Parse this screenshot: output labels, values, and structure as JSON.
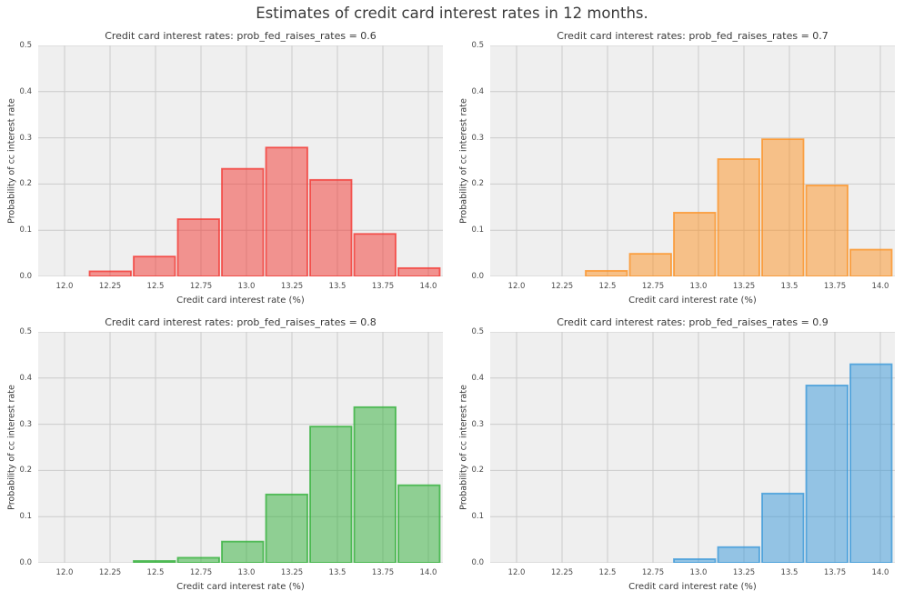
{
  "figure": {
    "title": "Estimates of credit card interest rates in 12 months.",
    "background": "#ffffff",
    "plot_background": "#efefef",
    "grid_color": "#cbcbcb",
    "text_color": "#3a3a3a"
  },
  "chart_data": [
    {
      "type": "bar",
      "title": "Credit card interest rates: prob_fed_raises_rates = 0.6",
      "prob_fed_raises_rates": 0.6,
      "xlabel": "Credit card interest rate (%)",
      "ylabel": "Probability of cc interest rate",
      "color": "#f3352f",
      "xlim": [
        11.855,
        14.08
      ],
      "ylim": [
        0.0,
        0.5
      ],
      "grid": true,
      "bin_width": 0.2425,
      "bars": [
        [
          12.13,
          0.011
        ],
        [
          12.3725,
          0.043
        ],
        [
          12.615,
          0.124
        ],
        [
          12.8575,
          0.233
        ],
        [
          13.1,
          0.279
        ],
        [
          13.3425,
          0.209
        ],
        [
          13.585,
          0.092
        ],
        [
          13.8275,
          0.018
        ]
      ],
      "xticks": [
        {
          "v": 12.0,
          "label": "12.0"
        },
        {
          "v": 12.25,
          "label": "12.25"
        },
        {
          "v": 12.5,
          "label": "12.5"
        },
        {
          "v": 12.75,
          "label": "12.75"
        },
        {
          "v": 13.0,
          "label": "13.0"
        },
        {
          "v": 13.25,
          "label": "13.25"
        },
        {
          "v": 13.5,
          "label": "13.5"
        },
        {
          "v": 13.75,
          "label": "13.75"
        },
        {
          "v": 14.0,
          "label": "14.0"
        }
      ],
      "yticks": [
        {
          "v": 0.0,
          "label": "0.0"
        },
        {
          "v": 0.1,
          "label": "0.1"
        },
        {
          "v": 0.2,
          "label": "0.2"
        },
        {
          "v": 0.3,
          "label": "0.3"
        },
        {
          "v": 0.4,
          "label": "0.4"
        },
        {
          "v": 0.5,
          "label": "0.5"
        }
      ]
    },
    {
      "type": "bar",
      "title": "Credit card interest rates: prob_fed_raises_rates = 0.7",
      "prob_fed_raises_rates": 0.7,
      "xlabel": "Credit card interest rate (%)",
      "ylabel": "Probability of cc interest rate",
      "color": "#fd9121",
      "xlim": [
        11.855,
        14.08
      ],
      "ylim": [
        0.0,
        0.5
      ],
      "grid": true,
      "bin_width": 0.2425,
      "bars": [
        [
          12.3725,
          0.012
        ],
        [
          12.615,
          0.049
        ],
        [
          12.8575,
          0.138
        ],
        [
          13.1,
          0.254
        ],
        [
          13.3425,
          0.297
        ],
        [
          13.585,
          0.197
        ],
        [
          13.8275,
          0.058
        ]
      ],
      "xticks": [
        {
          "v": 12.0,
          "label": "12.0"
        },
        {
          "v": 12.25,
          "label": "12.25"
        },
        {
          "v": 12.5,
          "label": "12.5"
        },
        {
          "v": 12.75,
          "label": "12.75"
        },
        {
          "v": 13.0,
          "label": "13.0"
        },
        {
          "v": 13.25,
          "label": "13.25"
        },
        {
          "v": 13.5,
          "label": "13.5"
        },
        {
          "v": 13.75,
          "label": "13.75"
        },
        {
          "v": 14.0,
          "label": "14.0"
        }
      ],
      "yticks": [
        {
          "v": 0.0,
          "label": "0.0"
        },
        {
          "v": 0.1,
          "label": "0.1"
        },
        {
          "v": 0.2,
          "label": "0.2"
        },
        {
          "v": 0.3,
          "label": "0.3"
        },
        {
          "v": 0.4,
          "label": "0.4"
        },
        {
          "v": 0.5,
          "label": "0.5"
        }
      ]
    },
    {
      "type": "bar",
      "title": "Credit card interest rates: prob_fed_raises_rates = 0.8",
      "prob_fed_raises_rates": 0.8,
      "xlabel": "Credit card interest rate (%)",
      "ylabel": "Probability of cc interest rate",
      "color": "#2faf37",
      "xlim": [
        11.855,
        14.08
      ],
      "ylim": [
        0.0,
        0.5
      ],
      "grid": true,
      "bin_width": 0.2425,
      "bars": [
        [
          12.3725,
          0.004
        ],
        [
          12.615,
          0.011
        ],
        [
          12.8575,
          0.046
        ],
        [
          13.1,
          0.148
        ],
        [
          13.3425,
          0.295
        ],
        [
          13.585,
          0.337
        ],
        [
          13.8275,
          0.168
        ]
      ],
      "xticks": [
        {
          "v": 12.0,
          "label": "12.0"
        },
        {
          "v": 12.25,
          "label": "12.25"
        },
        {
          "v": 12.5,
          "label": "12.5"
        },
        {
          "v": 12.75,
          "label": "12.75"
        },
        {
          "v": 13.0,
          "label": "13.0"
        },
        {
          "v": 13.25,
          "label": "13.25"
        },
        {
          "v": 13.5,
          "label": "13.5"
        },
        {
          "v": 13.75,
          "label": "13.75"
        },
        {
          "v": 14.0,
          "label": "14.0"
        }
      ],
      "yticks": [
        {
          "v": 0.0,
          "label": "0.0"
        },
        {
          "v": 0.1,
          "label": "0.1"
        },
        {
          "v": 0.2,
          "label": "0.2"
        },
        {
          "v": 0.3,
          "label": "0.3"
        },
        {
          "v": 0.4,
          "label": "0.4"
        },
        {
          "v": 0.5,
          "label": "0.5"
        }
      ]
    },
    {
      "type": "bar",
      "title": "Credit card interest rates: prob_fed_raises_rates = 0.9",
      "prob_fed_raises_rates": 0.9,
      "xlabel": "Credit card interest rate (%)",
      "ylabel": "Probability of cc interest rate",
      "color": "#3797d9",
      "xlim": [
        11.855,
        14.08
      ],
      "ylim": [
        0.0,
        0.5
      ],
      "grid": true,
      "bin_width": 0.2425,
      "bars": [
        [
          12.8575,
          0.008
        ],
        [
          13.1,
          0.034
        ],
        [
          13.3425,
          0.15
        ],
        [
          13.585,
          0.384
        ],
        [
          13.8275,
          0.43
        ]
      ],
      "xticks": [
        {
          "v": 12.0,
          "label": "12.0"
        },
        {
          "v": 12.25,
          "label": "12.25"
        },
        {
          "v": 12.5,
          "label": "12.5"
        },
        {
          "v": 12.75,
          "label": "12.75"
        },
        {
          "v": 13.0,
          "label": "13.0"
        },
        {
          "v": 13.25,
          "label": "13.25"
        },
        {
          "v": 13.5,
          "label": "13.5"
        },
        {
          "v": 13.75,
          "label": "13.75"
        },
        {
          "v": 14.0,
          "label": "14.0"
        }
      ],
      "yticks": [
        {
          "v": 0.0,
          "label": "0.0"
        },
        {
          "v": 0.1,
          "label": "0.1"
        },
        {
          "v": 0.2,
          "label": "0.2"
        },
        {
          "v": 0.3,
          "label": "0.3"
        },
        {
          "v": 0.4,
          "label": "0.4"
        },
        {
          "v": 0.5,
          "label": "0.5"
        }
      ]
    }
  ]
}
